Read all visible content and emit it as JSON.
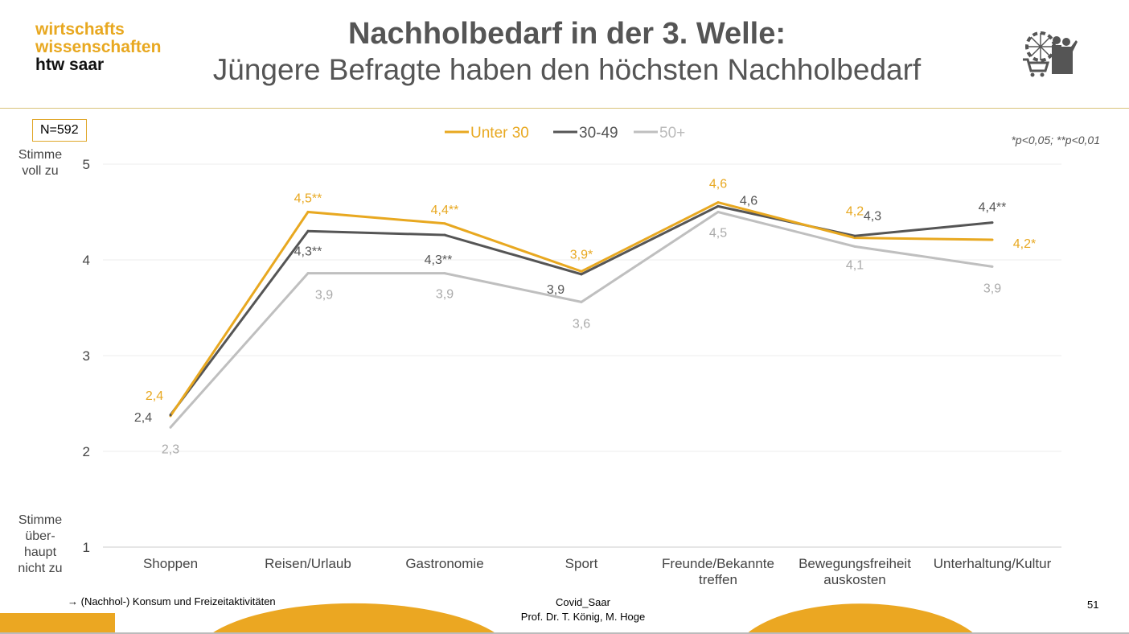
{
  "logo": {
    "line1": "wirtschafts",
    "line2": "wissenschaften",
    "line3": "htw saar"
  },
  "title": {
    "main": "Nachholbedarf in der 3. Welle:",
    "sub": "Jüngere Befragte haben den höchsten Nachholbedarf"
  },
  "sample": "N=592",
  "significance": "*p<0,05; **p<0,01",
  "icon": "ferris-wheel-shopping-family-icon",
  "chart_data": {
    "type": "line",
    "categories": [
      "Shoppen",
      "Reisen/Urlaub",
      "Gastronomie",
      "Sport",
      "Freunde/Bekannte treffen",
      "Bewegungsfreiheit auskosten",
      "Unterhaltung/Kultur"
    ],
    "ylim": [
      1,
      5
    ],
    "yticks": [
      "1",
      "2",
      "3",
      "4",
      "5"
    ],
    "ylabel_top": "Stimme voll zu",
    "ylabel_bottom": "Stimme über-haupt nicht zu",
    "legend_position": "top-center",
    "grid": true,
    "series": [
      {
        "name": "Unter 30",
        "color": "#e8a820",
        "values": [
          2.37,
          4.5,
          4.38,
          3.88,
          4.6,
          4.23,
          4.21
        ],
        "labels": [
          "2,4",
          "4,5**",
          "4,4**",
          "3,9*",
          "4,6",
          "4,2",
          "4,2*"
        ]
      },
      {
        "name": "30-49",
        "color": "#555555",
        "values": [
          2.38,
          4.3,
          4.26,
          3.85,
          4.56,
          4.25,
          4.39
        ],
        "labels": [
          "2,4",
          "4,3**",
          "4,3**",
          "3,9",
          "4,6",
          "4,3",
          "4,4**"
        ]
      },
      {
        "name": "50+",
        "color": "#bfbfbf",
        "values": [
          2.25,
          3.86,
          3.86,
          3.56,
          4.5,
          4.14,
          3.93
        ],
        "labels": [
          "2,3",
          "3,9",
          "3,9",
          "3,6",
          "4,5",
          "4,1",
          "3,9"
        ]
      }
    ]
  },
  "footer": {
    "note": "→ (Nachhol-) Konsum und Freizeitaktivitäten",
    "project": "Covid_Saar",
    "authors": "Prof. Dr. T. König, M. Hoge",
    "page": "51"
  }
}
